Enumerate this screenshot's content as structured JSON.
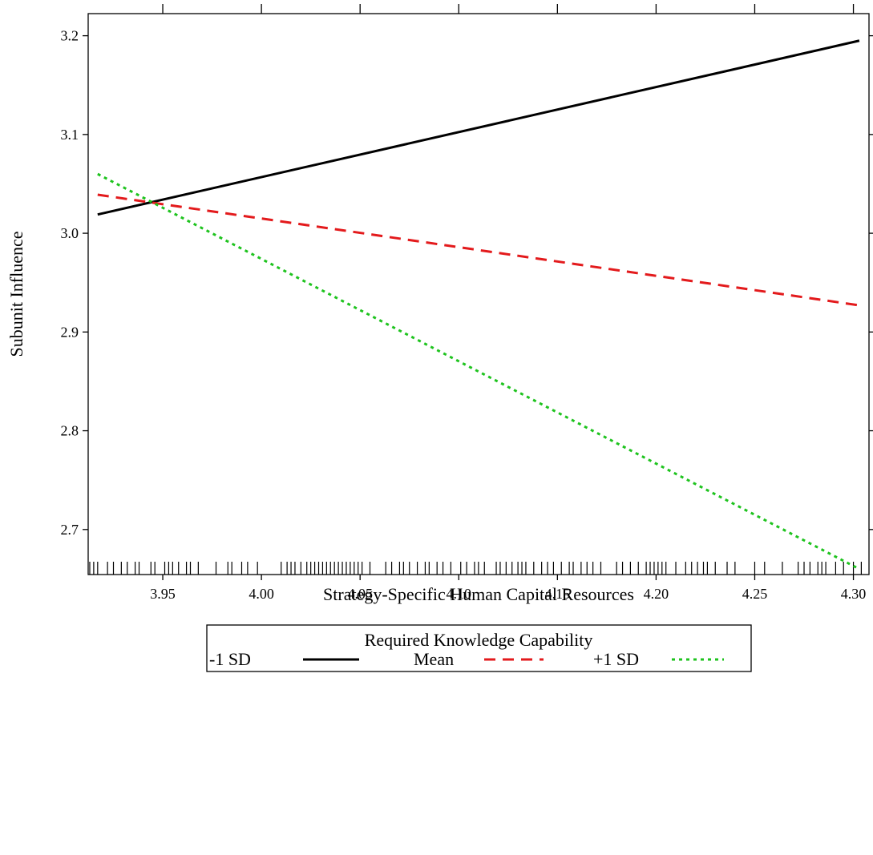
{
  "chart_data": {
    "type": "line",
    "title": "",
    "xlabel": "Strategy-Specific Human Capital Resources",
    "ylabel": "Subunit Influence",
    "xlim": [
      3.9122,
      4.3079
    ],
    "ylim": [
      2.6544,
      3.2224
    ],
    "x_ticks": [
      3.95,
      4.0,
      4.05,
      4.1,
      4.15,
      4.2,
      4.25,
      4.3
    ],
    "x_tick_labels": [
      "3.95",
      "4.00",
      "4.05",
      "4.10",
      "4.15",
      "4.20",
      "4.25",
      "4.30"
    ],
    "y_ticks": [
      2.7,
      2.8,
      2.9,
      3.0,
      3.1,
      3.2
    ],
    "y_tick_labels": [
      "2.7",
      "2.8",
      "2.9",
      "3.0",
      "3.1",
      "3.2"
    ],
    "grid": false,
    "legend": {
      "title": "Required Knowledge Capability",
      "placement": "bottom"
    },
    "series": [
      {
        "name": "-1 SD",
        "color": "#000000",
        "dash": "solid",
        "x": [
          3.917,
          4.303
        ],
        "y": [
          3.019,
          3.195
        ]
      },
      {
        "name": "Mean",
        "color": "#e31a1c",
        "dash": "dashed",
        "x": [
          3.917,
          4.303
        ],
        "y": [
          3.039,
          2.927
        ]
      },
      {
        "name": "+1 SD",
        "color": "#1ec31e",
        "dash": "dotted",
        "x": [
          3.917,
          4.303
        ],
        "y": [
          3.06,
          2.66
        ]
      }
    ],
    "rug_x": [
      3.913,
      3.915,
      3.917,
      3.922,
      3.925,
      3.929,
      3.932,
      3.936,
      3.938,
      3.944,
      3.946,
      3.951,
      3.953,
      3.955,
      3.958,
      3.962,
      3.964,
      3.968,
      3.977,
      3.983,
      3.985,
      3.99,
      3.993,
      3.998,
      4.01,
      4.013,
      4.015,
      4.017,
      4.02,
      4.023,
      4.025,
      4.027,
      4.029,
      4.031,
      4.033,
      4.035,
      4.037,
      4.039,
      4.041,
      4.043,
      4.045,
      4.047,
      4.049,
      4.051,
      4.055,
      4.063,
      4.066,
      4.07,
      4.072,
      4.075,
      4.079,
      4.083,
      4.085,
      4.089,
      4.092,
      4.096,
      4.101,
      4.104,
      4.108,
      4.11,
      4.113,
      4.119,
      4.121,
      4.124,
      4.127,
      4.13,
      4.132,
      4.134,
      4.138,
      4.142,
      4.145,
      4.148,
      4.152,
      4.156,
      4.158,
      4.162,
      4.165,
      4.168,
      4.172,
      4.18,
      4.183,
      4.187,
      4.191,
      4.195,
      4.197,
      4.199,
      4.201,
      4.203,
      4.205,
      4.21,
      4.215,
      4.218,
      4.221,
      4.224,
      4.226,
      4.23,
      4.236,
      4.24,
      4.25,
      4.255,
      4.264,
      4.272,
      4.275,
      4.278,
      4.282,
      4.284,
      4.286,
      4.291,
      4.295,
      4.3,
      4.304
    ]
  }
}
